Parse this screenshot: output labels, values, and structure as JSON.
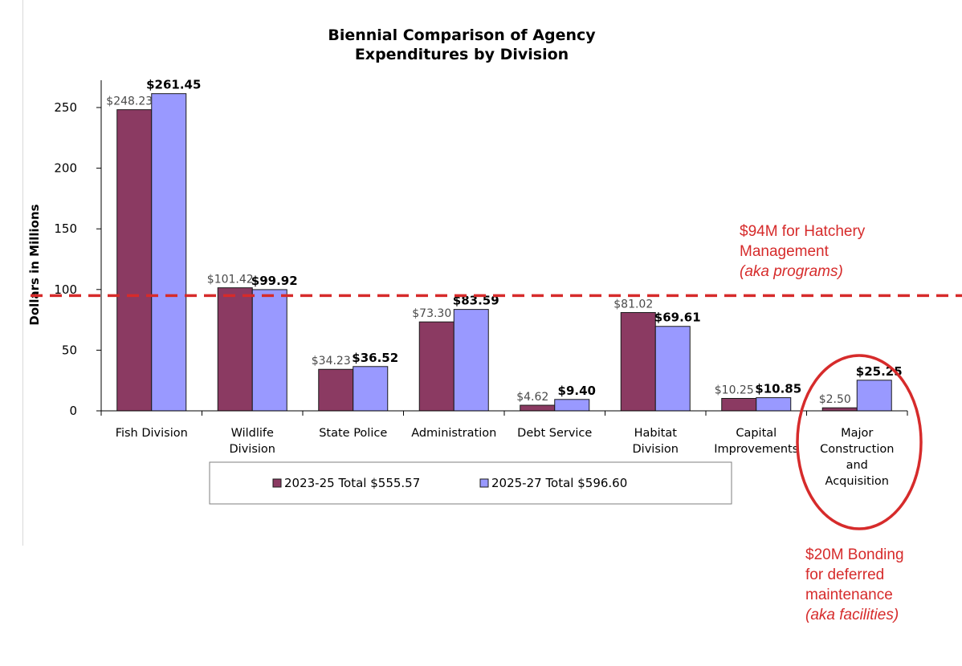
{
  "chart_data": {
    "type": "bar",
    "title": [
      "Biennial Comparison of Agency",
      "Expenditures by Division"
    ],
    "ylabel": "Dollars in Millions",
    "ylim": [
      0,
      270
    ],
    "yticks": [
      0,
      50,
      100,
      150,
      200,
      250
    ],
    "grid": false,
    "categories": [
      [
        "Fish Division"
      ],
      [
        "Wildlife",
        "Division"
      ],
      [
        "State Police"
      ],
      [
        "Administration"
      ],
      [
        "Debt Service"
      ],
      [
        "Habitat",
        "Division"
      ],
      [
        "Capital",
        "Improvements"
      ],
      [
        "Major",
        "Construction",
        "and",
        "Acquisition"
      ]
    ],
    "series": [
      {
        "name": "2023-25 Total $555.57",
        "color": "#8b3a62",
        "values": [
          248.23,
          101.42,
          34.23,
          73.3,
          4.62,
          81.02,
          10.25,
          2.5
        ],
        "labels": [
          "$248.23",
          "$101.42",
          "$34.23",
          "$73.30",
          "$4.62",
          "$81.02",
          "$10.25",
          "$2.50"
        ]
      },
      {
        "name": "2025-27 Total $596.60",
        "color": "#9999ff",
        "values": [
          261.45,
          99.92,
          36.52,
          83.59,
          9.4,
          69.61,
          10.85,
          25.25
        ],
        "labels": [
          "$261.45",
          "$99.92",
          "$36.52",
          "$83.59",
          "$9.40",
          "$69.61",
          "$10.85",
          "$25.25"
        ]
      }
    ],
    "legend_placement": "bottom",
    "reference_line": {
      "value": 95,
      "color": "#d62b2b",
      "style": "dashed"
    },
    "annotations": [
      {
        "lines": [
          "$94M for Hatchery",
          "Management"
        ],
        "italic_line": "(aka programs)"
      },
      {
        "lines": [
          "$20M Bonding",
          "for deferred",
          "maintenance"
        ],
        "italic_line": "(aka facilities)"
      }
    ],
    "highlight": {
      "category_index": 7,
      "shape": "ellipse",
      "color": "#d62b2b"
    }
  }
}
